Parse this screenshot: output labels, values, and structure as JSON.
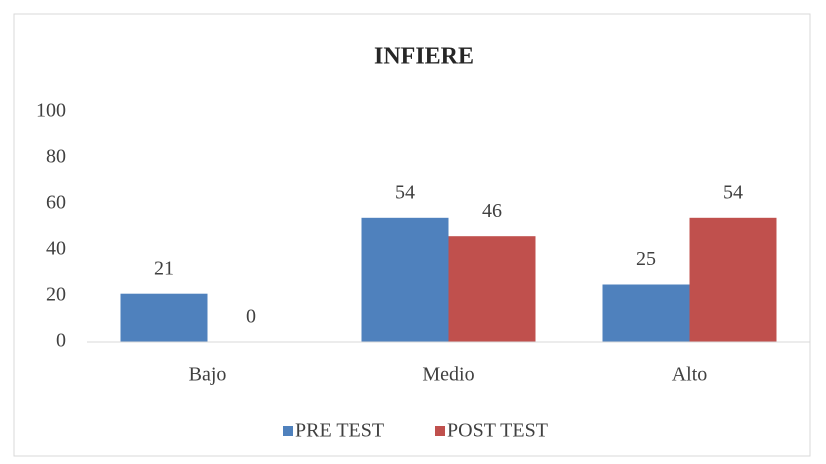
{
  "chart_data": {
    "type": "bar",
    "title": "INFIERE",
    "categories": [
      "Bajo",
      "Medio",
      "Alto"
    ],
    "series": [
      {
        "name": "PRE TEST",
        "color": "#4f81bd",
        "values": [
          21,
          54,
          25
        ]
      },
      {
        "name": "POST TEST",
        "color": "#c0504d",
        "values": [
          0,
          46,
          54
        ]
      }
    ],
    "ylim": [
      0,
      100
    ],
    "yticks": [
      0,
      20,
      40,
      60,
      80,
      100
    ],
    "grid": false,
    "legend": "bottom"
  }
}
